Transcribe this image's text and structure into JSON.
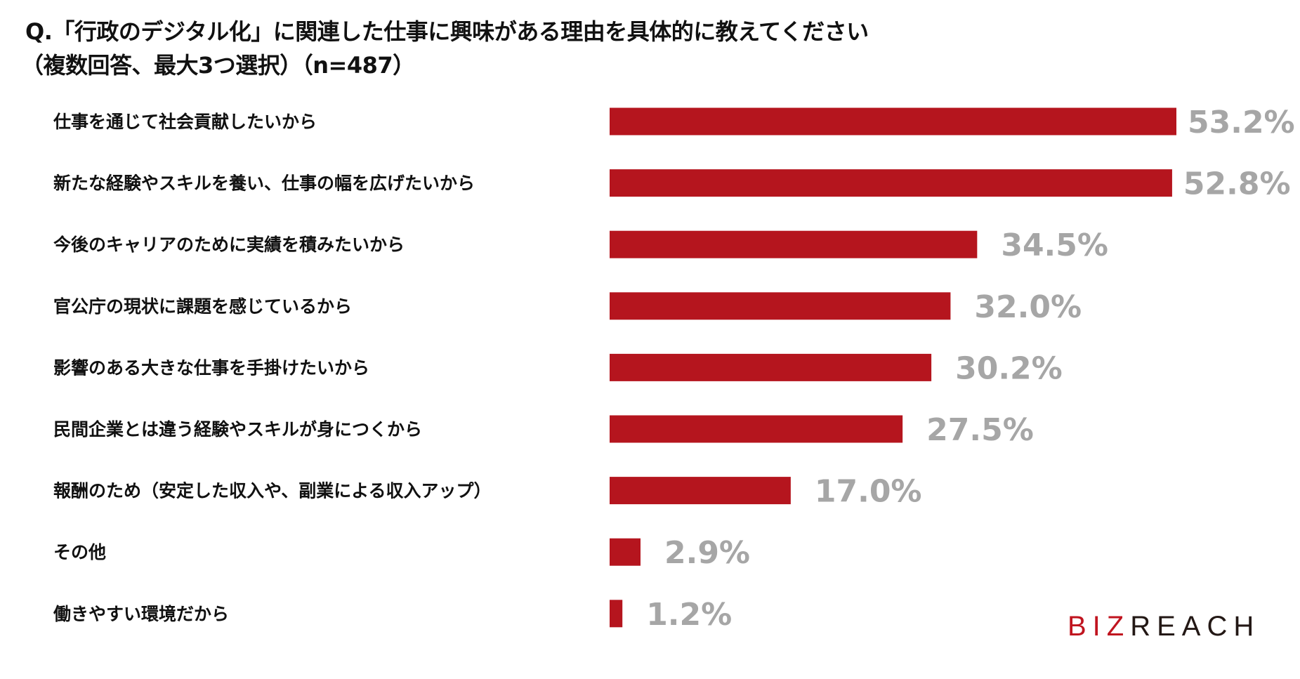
{
  "chart_data": {
    "type": "bar",
    "orientation": "horizontal",
    "title": "Q.「行政のデジタル化」に関連した仕事に興味がある理由を具体的に教えてください",
    "subtitle": "（複数回答、最大3つ選択）（n=487）",
    "categories": [
      "仕事を通じて社会貢献したいから",
      "新たな経験やスキルを養い、仕事の幅を広げたいから",
      "今後のキャリアのために実績を積みたいから",
      "官公庁の現状に課題を感じているから",
      "影響のある大きな仕事を手掛けたいから",
      "民間企業とは違う経験やスキルが身につくから",
      "報酬のため（安定した収入や、副業による収入アップ）",
      "その他",
      "働きやすい環境だから"
    ],
    "values": [
      53.2,
      52.8,
      34.5,
      32.0,
      30.2,
      27.5,
      17.0,
      2.9,
      1.2
    ],
    "value_labels": [
      "53.2%",
      "52.8%",
      "34.5%",
      "32.0%",
      "30.2%",
      "27.5%",
      "17.0%",
      "2.9%",
      "1.2%"
    ],
    "unit": "%",
    "xlim": [
      0,
      53.2
    ],
    "grid": false,
    "bar_color": "#b5151e",
    "value_label_color": "#a6a6a6"
  },
  "logo": {
    "part1": "BIZ",
    "part2": "REACH"
  }
}
